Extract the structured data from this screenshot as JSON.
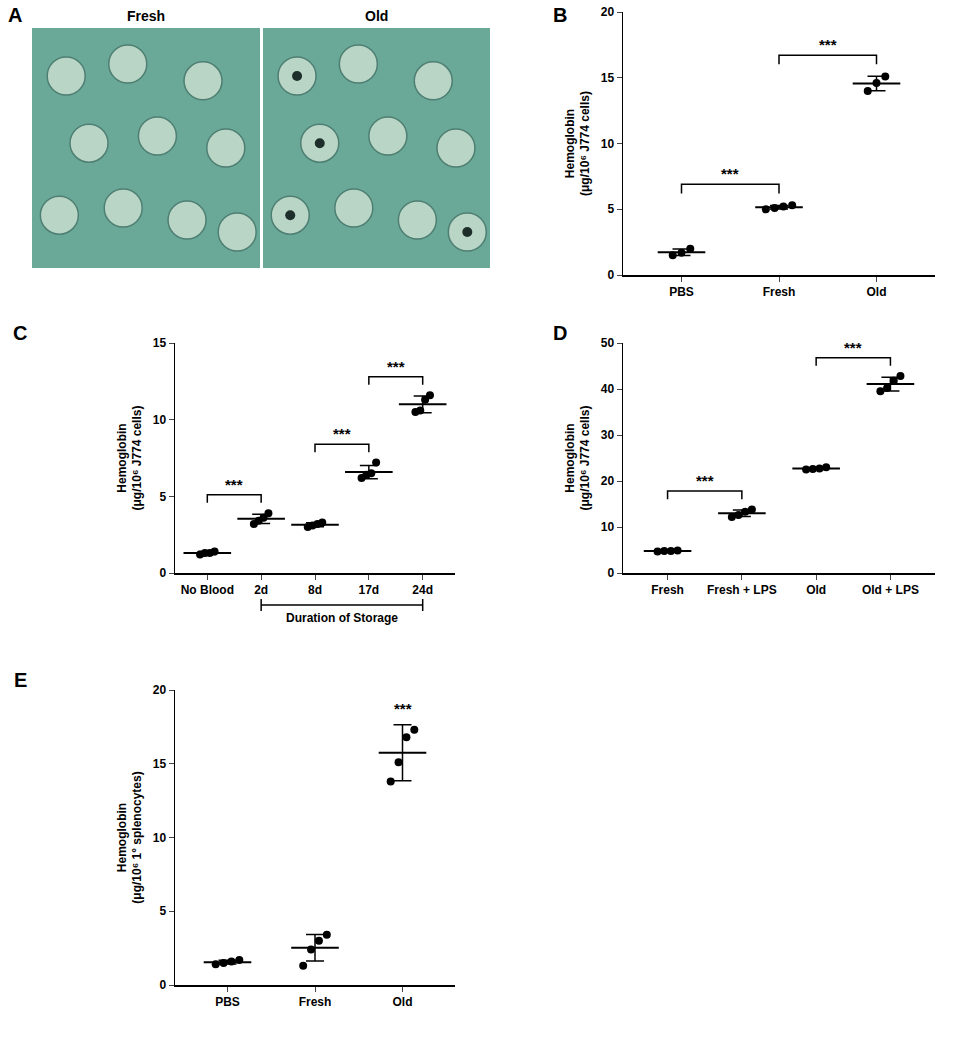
{
  "chart_data": [
    {
      "type": "image",
      "panel": "A",
      "labels": [
        "Fresh",
        "Old"
      ]
    },
    {
      "type": "scatter",
      "panel": "B",
      "y_label": "Hemoglobin (μg/10⁶ J774 cells)",
      "categories": [
        "PBS",
        "Fresh",
        "Old"
      ],
      "points": [
        [
          1.5,
          1.7,
          2.0
        ],
        [
          5.0,
          5.1,
          5.2,
          5.3
        ],
        [
          14.0,
          14.6,
          15.1
        ]
      ],
      "values": [
        1.73,
        5.15,
        14.57
      ],
      "error": [
        0.25,
        0.13,
        0.55
      ],
      "ylim": [
        0,
        20
      ],
      "yticks": [
        0,
        5,
        10,
        15,
        20
      ],
      "significance": [
        {
          "from": "PBS",
          "to": "Fresh",
          "label": "***"
        },
        {
          "from": "Fresh",
          "to": "Old",
          "label": "***"
        }
      ]
    },
    {
      "type": "scatter",
      "panel": "C",
      "y_label": "Hemoglobin (μg/10⁶ J774 cells)",
      "categories": [
        "No Blood",
        "2d",
        "8d",
        "17d",
        "24d"
      ],
      "points": [
        [
          1.2,
          1.3,
          1.3,
          1.4
        ],
        [
          3.2,
          3.4,
          3.6,
          3.9
        ],
        [
          3.0,
          3.1,
          3.2,
          3.3
        ],
        [
          6.2,
          6.4,
          6.5,
          7.2
        ],
        [
          10.5,
          10.6,
          11.3,
          11.6
        ]
      ],
      "values": [
        1.3,
        3.53,
        3.15,
        6.58,
        11.0
      ],
      "error": [
        0.1,
        0.3,
        0.13,
        0.43,
        0.55
      ],
      "ylim": [
        0,
        15
      ],
      "yticks": [
        0,
        5,
        10,
        15
      ],
      "group_label": {
        "text": "Duration of Storage",
        "from": "2d",
        "to": "24d"
      },
      "significance": [
        {
          "from": "No Blood",
          "to": "2d",
          "label": "***"
        },
        {
          "from": "8d",
          "to": "17d",
          "label": "***"
        },
        {
          "from": "17d",
          "to": "24d",
          "label": "***"
        }
      ]
    },
    {
      "type": "scatter",
      "panel": "D",
      "y_label": "Hemoglobin (μg/10⁶ J774 cells)",
      "categories": [
        "Fresh",
        "Fresh + LPS",
        "Old",
        "Old + LPS"
      ],
      "points": [
        [
          4.7,
          4.8,
          4.8,
          4.9
        ],
        [
          12.2,
          12.6,
          13.3,
          13.8
        ],
        [
          22.5,
          22.6,
          22.7,
          23.0
        ],
        [
          39.5,
          40.2,
          41.8,
          42.8
        ]
      ],
      "values": [
        4.8,
        12.98,
        22.7,
        41.08
      ],
      "error": [
        0.08,
        0.7,
        0.2,
        1.5
      ],
      "ylim": [
        0,
        50
      ],
      "yticks": [
        0,
        10,
        20,
        30,
        40,
        50
      ],
      "significance": [
        {
          "from": "Fresh",
          "to": "Fresh + LPS",
          "label": "***"
        },
        {
          "from": "Old",
          "to": "Old + LPS",
          "label": "***"
        }
      ]
    },
    {
      "type": "scatter",
      "panel": "E",
      "y_label": "Hemoglobin (μg/10⁶ 1° splenocytes)",
      "categories": [
        "PBS",
        "Fresh",
        "Old"
      ],
      "points": [
        [
          1.4,
          1.5,
          1.6,
          1.7
        ],
        [
          1.3,
          2.4,
          3.0,
          3.4
        ],
        [
          13.8,
          15.1,
          16.8,
          17.3
        ]
      ],
      "values": [
        1.55,
        2.53,
        15.75
      ],
      "error": [
        0.13,
        0.9,
        1.9
      ],
      "ylim": [
        0,
        20
      ],
      "yticks": [
        0,
        5,
        10,
        15,
        20
      ],
      "significance": [
        {
          "at": "Old",
          "label": "***"
        }
      ]
    }
  ]
}
